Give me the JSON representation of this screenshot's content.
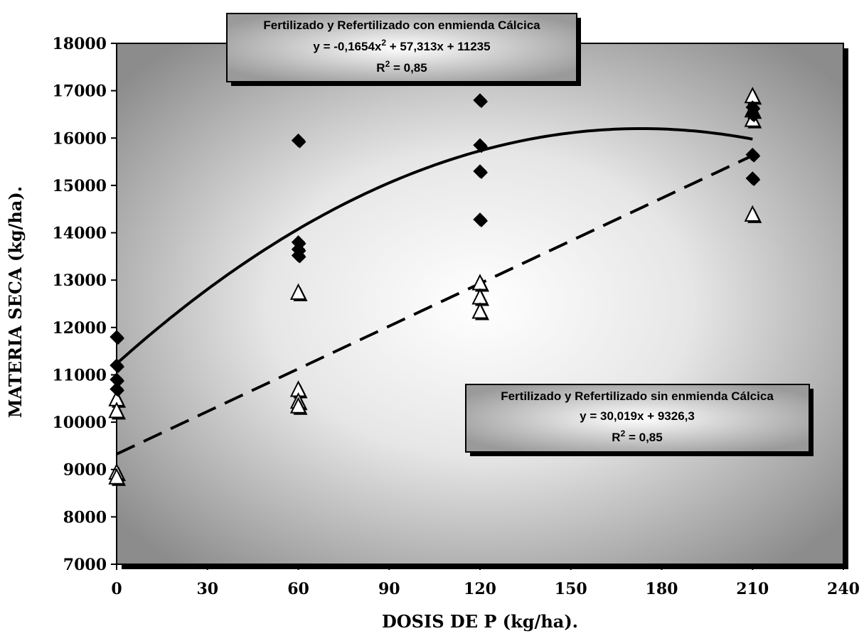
{
  "chart_data": {
    "type": "scatter",
    "xlabel": "DOSIS DE P (kg/ha).",
    "ylabel": "MATERIA SECA (kg/ha).",
    "xlim": [
      0,
      240
    ],
    "ylim": [
      7000,
      18000
    ],
    "x_ticks": [
      "0",
      "30",
      "60",
      "90",
      "120",
      "150",
      "180",
      "210",
      "240"
    ],
    "y_ticks": [
      "7000",
      "8000",
      "9000",
      "10000",
      "11000",
      "12000",
      "13000",
      "14000",
      "15000",
      "16000",
      "17000",
      "18000"
    ],
    "grid": false,
    "series": [
      {
        "marker": "filled-diamond",
        "color": "#000000",
        "points": [
          {
            "x": 0,
            "y": 11800
          },
          {
            "x": 0,
            "y": 11200
          },
          {
            "x": 0,
            "y": 10900
          },
          {
            "x": 0,
            "y": 10700
          },
          {
            "x": 60,
            "y": 15950
          },
          {
            "x": 60,
            "y": 13800
          },
          {
            "x": 60,
            "y": 13650
          },
          {
            "x": 60,
            "y": 13520
          },
          {
            "x": 120,
            "y": 16800
          },
          {
            "x": 120,
            "y": 15850
          },
          {
            "x": 120,
            "y": 15300
          },
          {
            "x": 120,
            "y": 14280
          },
          {
            "x": 210,
            "y": 16650
          },
          {
            "x": 210,
            "y": 16500
          },
          {
            "x": 210,
            "y": 15650
          },
          {
            "x": 210,
            "y": 15150
          }
        ],
        "trendline": {
          "kind": "polynomial",
          "coefficients": [
            11235,
            57.313,
            -0.1654
          ],
          "x_range": [
            0,
            210
          ],
          "style": "solid"
        }
      },
      {
        "marker": "hollow-triangle",
        "color": "#000000",
        "points": [
          {
            "x": 0,
            "y": 10500
          },
          {
            "x": 0,
            "y": 10250
          },
          {
            "x": 0,
            "y": 8950
          },
          {
            "x": 0,
            "y": 8850
          },
          {
            "x": 60,
            "y": 12750
          },
          {
            "x": 60,
            "y": 10700
          },
          {
            "x": 60,
            "y": 10450
          },
          {
            "x": 60,
            "y": 10350
          },
          {
            "x": 120,
            "y": 12950
          },
          {
            "x": 120,
            "y": 12650
          },
          {
            "x": 120,
            "y": 12350
          },
          {
            "x": 210,
            "y": 16900
          },
          {
            "x": 210,
            "y": 16600
          },
          {
            "x": 210,
            "y": 16400
          },
          {
            "x": 210,
            "y": 14400
          }
        ],
        "trendline": {
          "kind": "linear",
          "coefficients": [
            9326.3,
            30.019
          ],
          "x_range": [
            0,
            210
          ],
          "style": "dashed"
        }
      }
    ],
    "annotations": [
      {
        "title": "Fertilizado y Refertilizado con enmienda Cálcica",
        "equation_main": "y = -0,1654x",
        "equation_sup": "2",
        "equation_rest": " + 57,313x + 11235",
        "r2_label": "R",
        "r2_sup": "2",
        "r2_value": " = 0,85"
      },
      {
        "title": "Fertilizado y Refertilizado sin enmienda Cálcica",
        "equation_main": "y = 30,019x + 9326,3",
        "r2_label": "R",
        "r2_sup": "2",
        "r2_value": " = 0,85"
      }
    ]
  }
}
